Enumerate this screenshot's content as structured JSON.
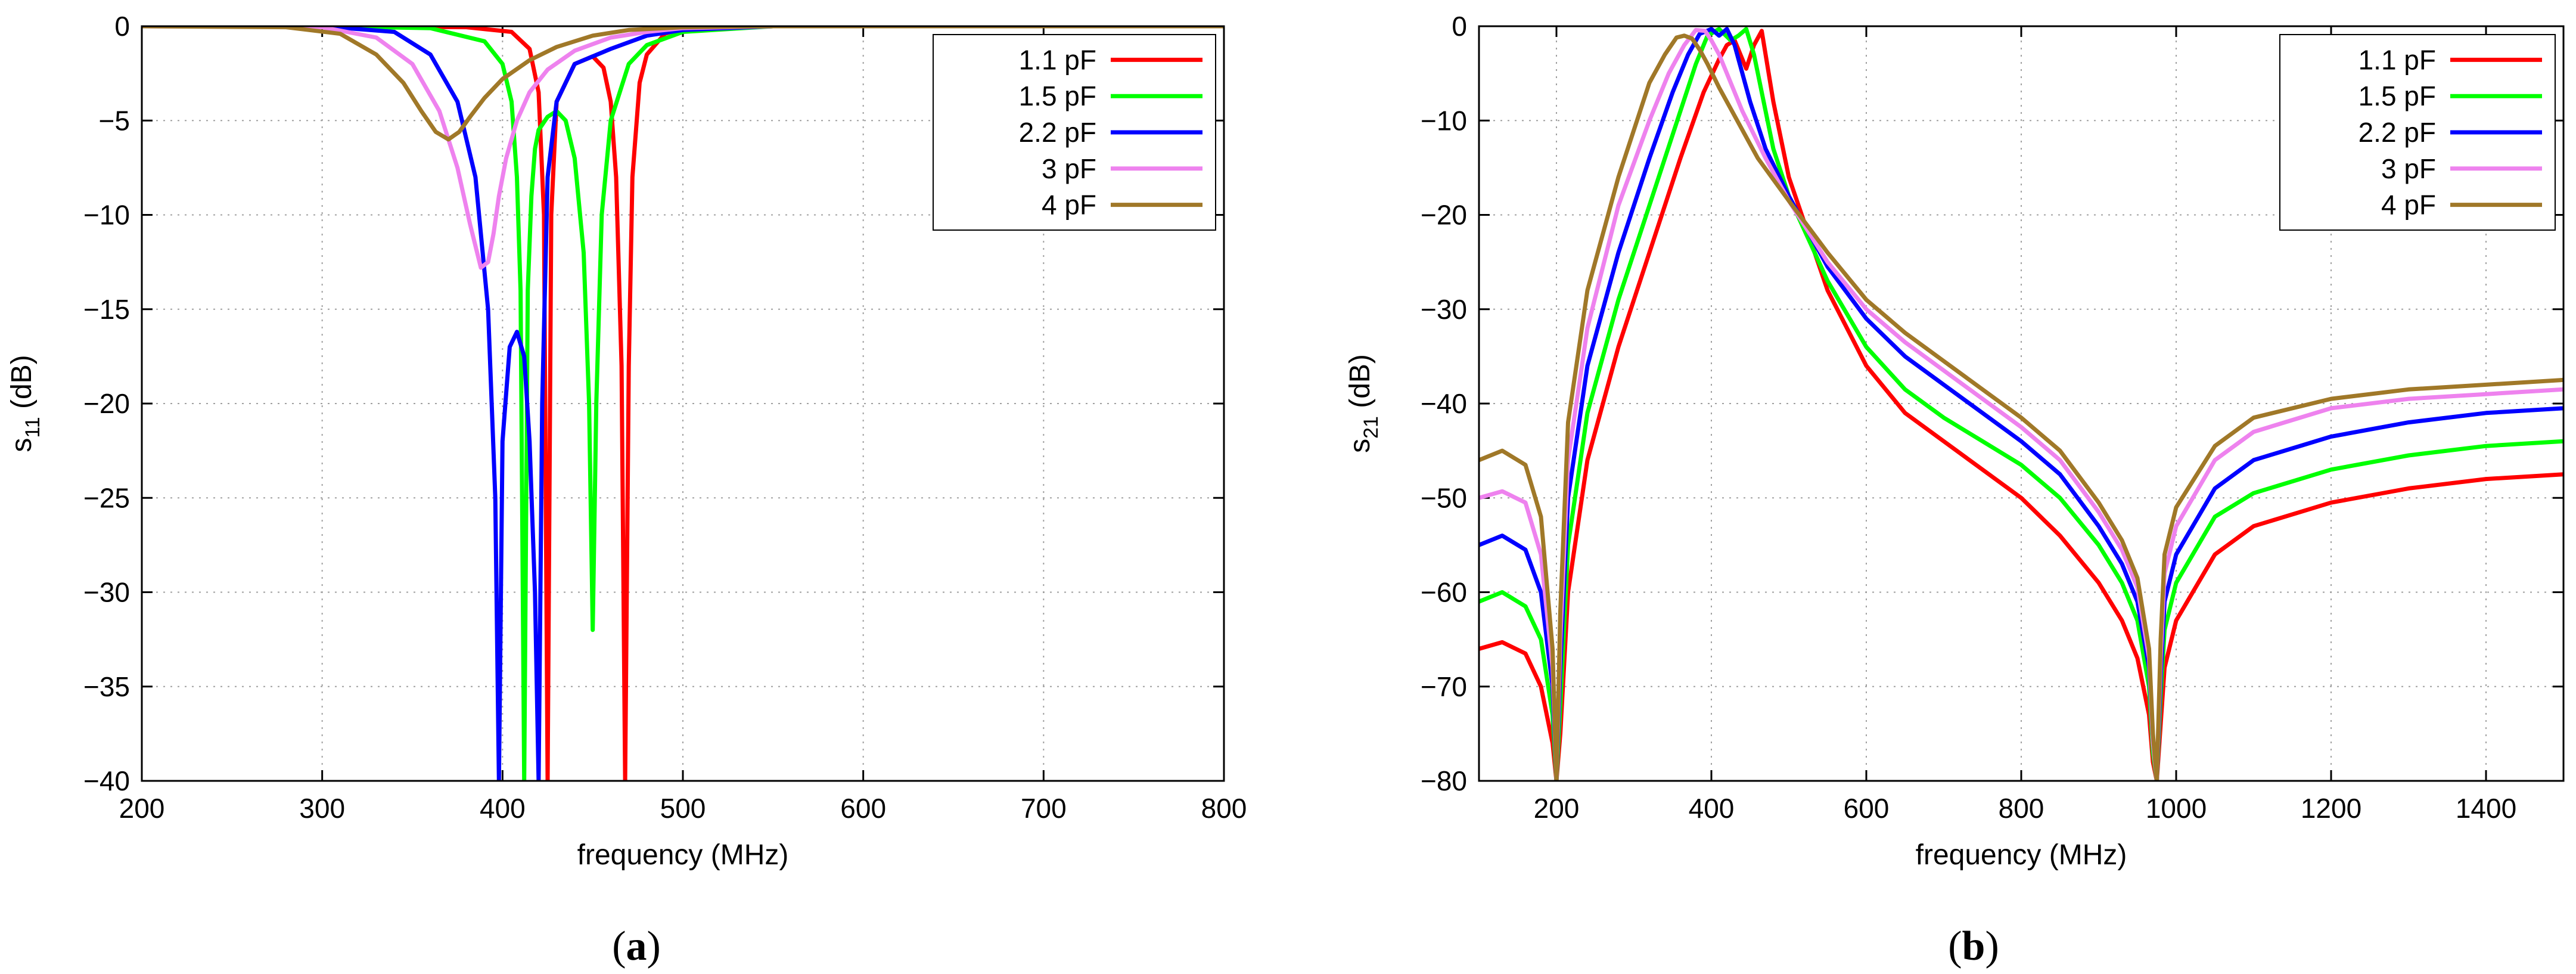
{
  "chart_data": [
    {
      "type": "line",
      "panel_label": "a",
      "xlabel": "frequency  (MHz)",
      "ylabel": "s",
      "ylabel_sub": "11",
      "ylabel_unit": " (dB)",
      "xlim": [
        200,
        800
      ],
      "ylim": [
        -40,
        0
      ],
      "xticks": [
        200,
        300,
        400,
        500,
        600,
        700,
        800
      ],
      "yticks": [
        0,
        -5,
        -10,
        -15,
        -20,
        -25,
        -30,
        -35,
        -40
      ],
      "ytick_labels": [
        "0",
        "−5",
        "−10",
        "−15",
        "−20",
        "−25",
        "−30",
        "−35",
        "−40"
      ],
      "grid": true,
      "legend_position": "top-right",
      "series": [
        {
          "name": "1.1 pF",
          "color": "#ff0000",
          "x": [
            200,
            300,
            380,
            405,
            415,
            420,
            423,
            425,
            427,
            430,
            440,
            450,
            456,
            460,
            463,
            466,
            468,
            470,
            472,
            476,
            480,
            490,
            500,
            550,
            800
          ],
          "y": [
            0,
            0,
            -0.05,
            -0.3,
            -1.2,
            -3.5,
            -10,
            -40,
            -10,
            -4,
            -2,
            -1.6,
            -2.2,
            -4,
            -8,
            -18,
            -40,
            -18,
            -8,
            -3,
            -1.5,
            -0.4,
            -0.1,
            0,
            0
          ]
        },
        {
          "name": "1.5 pF",
          "color": "#00ff00",
          "x": [
            200,
            300,
            360,
            390,
            400,
            405,
            408,
            410,
            412,
            414,
            416,
            418,
            420,
            425,
            430,
            435,
            440,
            445,
            448,
            450,
            452,
            455,
            460,
            470,
            480,
            500,
            550,
            800
          ],
          "y": [
            0,
            0,
            -0.1,
            -0.8,
            -2,
            -4,
            -8,
            -14,
            -40,
            -14,
            -9,
            -6.5,
            -5.5,
            -4.8,
            -4.5,
            -5,
            -7,
            -12,
            -20,
            -32,
            -20,
            -10,
            -5,
            -2,
            -1,
            -0.3,
            0,
            0
          ]
        },
        {
          "name": "2.2 pF",
          "color": "#0000ff",
          "x": [
            200,
            300,
            340,
            360,
            375,
            385,
            392,
            396,
            398,
            400,
            404,
            408,
            412,
            415,
            418,
            420,
            422,
            425,
            430,
            440,
            450,
            460,
            480,
            500,
            550,
            800
          ],
          "y": [
            0,
            0,
            -0.3,
            -1.5,
            -4,
            -8,
            -15,
            -25,
            -40,
            -22,
            -17,
            -16.2,
            -17.5,
            -22,
            -30,
            -40,
            -20,
            -8,
            -4,
            -2,
            -1.6,
            -1.2,
            -0.5,
            -0.2,
            0,
            0
          ]
        },
        {
          "name": "3 pF",
          "color": "#ee82ee",
          "x": [
            200,
            300,
            330,
            350,
            365,
            375,
            382,
            388,
            392,
            395,
            398,
            402,
            408,
            415,
            425,
            440,
            460,
            480,
            500,
            550,
            800
          ],
          "y": [
            0,
            -0.05,
            -0.6,
            -2,
            -4.5,
            -7.5,
            -10.5,
            -12.8,
            -12.5,
            -11,
            -9,
            -7,
            -5,
            -3.5,
            -2.3,
            -1.3,
            -0.6,
            -0.3,
            -0.1,
            0,
            0
          ]
        },
        {
          "name": "4 pF",
          "color": "#a07828",
          "x": [
            200,
            280,
            310,
            330,
            345,
            355,
            363,
            370,
            376,
            382,
            390,
            400,
            415,
            430,
            450,
            470,
            500,
            550,
            800
          ],
          "y": [
            0,
            -0.05,
            -0.4,
            -1.5,
            -3,
            -4.5,
            -5.6,
            -6,
            -5.6,
            -4.8,
            -3.8,
            -2.8,
            -1.8,
            -1.1,
            -0.5,
            -0.2,
            -0.05,
            0,
            0
          ]
        }
      ]
    },
    {
      "type": "line",
      "panel_label": "b",
      "xlabel": "frequency  (MHz)",
      "ylabel": "s",
      "ylabel_sub": "21",
      "ylabel_unit": " (dB)",
      "xlim": [
        100,
        1500
      ],
      "ylim": [
        -80,
        0
      ],
      "xticks": [
        200,
        400,
        600,
        800,
        1000,
        1200,
        1400
      ],
      "yticks": [
        0,
        -10,
        -20,
        -30,
        -40,
        -50,
        -60,
        -70,
        -80
      ],
      "ytick_labels": [
        "0",
        "−10",
        "−20",
        "−30",
        "−40",
        "−50",
        "−60",
        "−70",
        "−80"
      ],
      "grid": true,
      "legend_position": "top-right",
      "series": [
        {
          "name": "1.1 pF",
          "color": "#ff0000",
          "x": [
            100,
            130,
            160,
            180,
            195,
            200,
            205,
            215,
            240,
            280,
            320,
            360,
            390,
            410,
            420,
            430,
            445,
            455,
            465,
            480,
            500,
            550,
            600,
            650,
            700,
            750,
            800,
            850,
            900,
            930,
            950,
            965,
            970,
            975,
            980,
            985,
            1000,
            1050,
            1100,
            1200,
            1300,
            1400,
            1500
          ],
          "y": [
            -66,
            -65.3,
            -66.5,
            -70,
            -76,
            -80,
            -75,
            -60,
            -46,
            -34,
            -24,
            -14,
            -7,
            -3.5,
            -2,
            -1.5,
            -4.5,
            -2,
            -0.5,
            -8,
            -16,
            -28,
            -36,
            -41,
            -44,
            -47,
            -50,
            -54,
            -59,
            -63,
            -67,
            -73,
            -78,
            -80,
            -74,
            -68,
            -63,
            -56,
            -53,
            -50.5,
            -49,
            -48,
            -47.5
          ]
        },
        {
          "name": "1.5 pF",
          "color": "#00ff00",
          "x": [
            100,
            130,
            160,
            180,
            195,
            200,
            205,
            215,
            240,
            280,
            320,
            360,
            380,
            395,
            410,
            425,
            435,
            445,
            455,
            460,
            470,
            480,
            500,
            550,
            600,
            650,
            700,
            750,
            800,
            850,
            900,
            930,
            950,
            965,
            970,
            975,
            980,
            985,
            1000,
            1050,
            1100,
            1200,
            1300,
            1400,
            1500
          ],
          "y": [
            -61,
            -60,
            -61.5,
            -65,
            -73,
            -80,
            -72,
            -55,
            -41,
            -29,
            -19,
            -9,
            -4,
            -1,
            -0.3,
            -1.5,
            -1,
            -0.3,
            -3,
            -5,
            -9,
            -13,
            -18,
            -27,
            -34,
            -38.5,
            -41.5,
            -44,
            -46.5,
            -50,
            -55,
            -59,
            -63,
            -70,
            -77,
            -80,
            -71,
            -64,
            -59,
            -52,
            -49.5,
            -47,
            -45.5,
            -44.5,
            -44
          ]
        },
        {
          "name": "2.2 pF",
          "color": "#0000ff",
          "x": [
            100,
            130,
            160,
            180,
            195,
            200,
            205,
            215,
            240,
            280,
            320,
            350,
            370,
            385,
            400,
            410,
            420,
            430,
            440,
            450,
            470,
            500,
            550,
            600,
            650,
            700,
            750,
            800,
            850,
            900,
            930,
            950,
            965,
            970,
            975,
            980,
            985,
            1000,
            1050,
            1100,
            1200,
            1300,
            1400,
            1500
          ],
          "y": [
            -55,
            -54,
            -55.5,
            -60,
            -70,
            -80,
            -68,
            -50,
            -36,
            -24,
            -14,
            -7,
            -3,
            -0.8,
            -0.3,
            -1,
            -0.3,
            -2,
            -5,
            -8,
            -13,
            -18,
            -25.5,
            -31,
            -35,
            -38,
            -41,
            -44,
            -47.5,
            -53,
            -57,
            -61,
            -68,
            -76,
            -80,
            -69,
            -61,
            -56,
            -49,
            -46,
            -43.5,
            -42,
            -41,
            -40.5
          ]
        },
        {
          "name": "3 pF",
          "color": "#ee82ee",
          "x": [
            100,
            130,
            160,
            180,
            195,
            200,
            205,
            215,
            240,
            280,
            320,
            345,
            365,
            380,
            392,
            400,
            410,
            420,
            440,
            470,
            500,
            550,
            600,
            650,
            700,
            750,
            800,
            850,
            900,
            930,
            950,
            965,
            970,
            975,
            980,
            985,
            1000,
            1050,
            1100,
            1200,
            1300,
            1400,
            1500
          ],
          "y": [
            -50,
            -49.3,
            -50.5,
            -56,
            -68,
            -80,
            -65,
            -46,
            -32,
            -19,
            -10,
            -5,
            -2,
            -0.4,
            -0.5,
            -1.5,
            -3,
            -5,
            -9,
            -14,
            -18.5,
            -25,
            -30,
            -33.5,
            -36.5,
            -39.5,
            -42.5,
            -46,
            -51.5,
            -55.5,
            -59.5,
            -67,
            -76,
            -80,
            -67,
            -58,
            -53,
            -46,
            -43,
            -40.5,
            -39.5,
            -39,
            -38.5
          ]
        },
        {
          "name": "4 pF",
          "color": "#a07828",
          "x": [
            100,
            130,
            160,
            180,
            195,
            200,
            205,
            215,
            240,
            280,
            320,
            340,
            355,
            365,
            375,
            385,
            395,
            410,
            430,
            460,
            500,
            550,
            600,
            650,
            700,
            750,
            800,
            850,
            900,
            930,
            950,
            965,
            970,
            975,
            980,
            985,
            1000,
            1050,
            1100,
            1200,
            1300,
            1400,
            1500
          ],
          "y": [
            -46,
            -45,
            -46.5,
            -52,
            -66,
            -80,
            -62,
            -42,
            -28,
            -16,
            -6,
            -3,
            -1.2,
            -1,
            -1.3,
            -2.5,
            -4,
            -6.5,
            -9.5,
            -14,
            -18.5,
            -24,
            -29,
            -32.5,
            -35.5,
            -38.5,
            -41.5,
            -45,
            -50.5,
            -54.5,
            -58.5,
            -66,
            -75,
            -80,
            -65,
            -56,
            -51,
            -44.5,
            -41.5,
            -39.5,
            -38.5,
            -38,
            -37.5
          ]
        }
      ]
    }
  ]
}
